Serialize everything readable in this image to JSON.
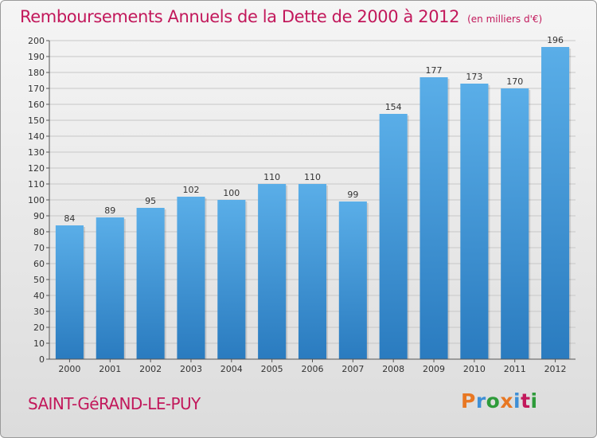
{
  "header": {
    "title": "Remboursements Annuels de la Dette de 2000 à 2012",
    "unit_note": "(en milliers d'€)"
  },
  "footer": {
    "commune": "SAINT-GéRAND-LE-PUY",
    "logo": "Proxiti",
    "logo_colors": [
      "#e87722",
      "#3e8fd6",
      "#2e9b3a",
      "#e87722",
      "#3e8fd6",
      "#c2185b",
      "#2e9b3a"
    ]
  },
  "colors": {
    "bar_top": "#5aaee8",
    "bar_bottom": "#2a7bbf",
    "grid": "#c7c7c7",
    "axis": "#555555",
    "text": "#333333",
    "title": "#c2185b"
  },
  "chart_data": {
    "type": "bar",
    "title": "Remboursements Annuels de la Dette de 2000 à 2012",
    "categories": [
      "2000",
      "2001",
      "2002",
      "2003",
      "2004",
      "2005",
      "2006",
      "2007",
      "2008",
      "2009",
      "2010",
      "2011",
      "2012"
    ],
    "values": [
      84,
      89,
      95,
      102,
      100,
      110,
      110,
      99,
      154,
      177,
      173,
      170,
      196
    ],
    "ylim": [
      0,
      200
    ],
    "ytick_step": 10,
    "grid": true,
    "data_labels": true
  }
}
